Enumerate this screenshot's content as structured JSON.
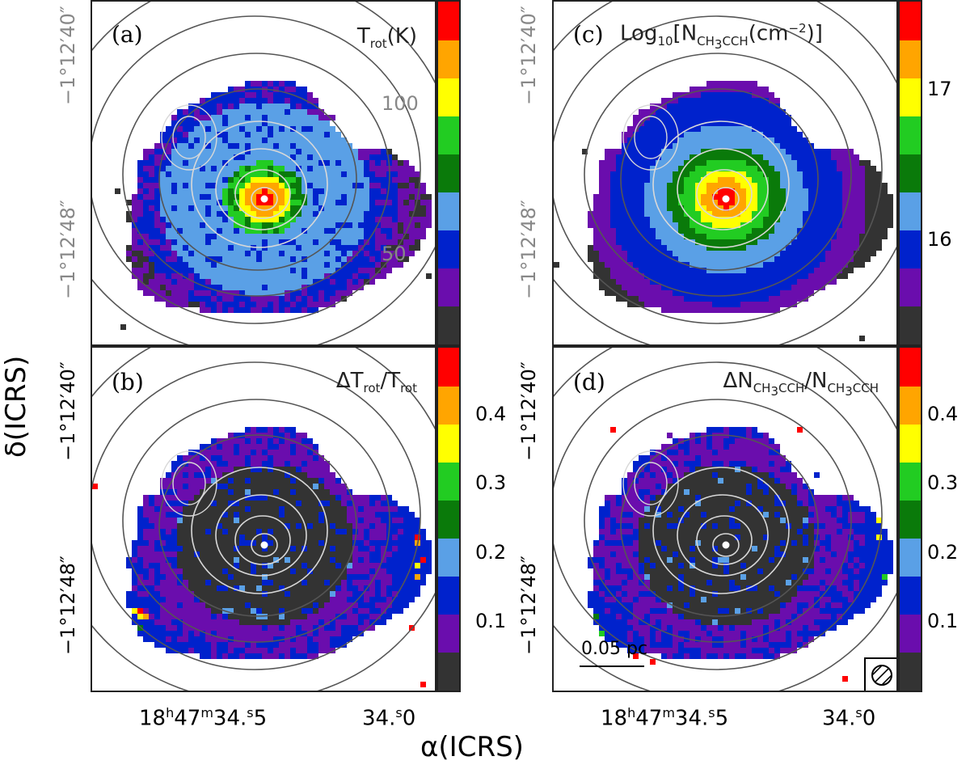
{
  "figure": {
    "x_axis_title": "α(ICRS)",
    "y_axis_title": "δ(ICRS)",
    "ra_ticks": [
      {
        "h": "18",
        "m": "47",
        "s": "34",
        "frac": "5",
        "label": "18h47m34.5s"
      },
      {
        "h": "",
        "m": "",
        "s": "34",
        "frac": "0",
        "label": "34.0s"
      }
    ],
    "dec_ticks": [
      "−1°12′40″",
      "−1°12′48″"
    ],
    "scalebar_label": "0.05 pc",
    "beam_icon": "hatched-circle-beam"
  },
  "colors": {
    "levels": [
      "#333333",
      "#6a0dad",
      "#0022cc",
      "#5aa0e6",
      "#0a7a0a",
      "#22cc22",
      "#ffff00",
      "#ffa500",
      "#ff0000"
    ],
    "contour": "#555555",
    "contour_light": "#d8d8d8"
  },
  "chart_data": [
    {
      "id": "a",
      "type": "heatmap",
      "label": "(a)",
      "quantity_html": "T<sub>rot</sub>(K)",
      "quantity_text": "Trot(K)",
      "colorbar_ticks": [
        {
          "value": 100,
          "label": "100"
        },
        {
          "value": 50,
          "label": "50"
        }
      ],
      "colorbar_range": [
        20,
        135
      ],
      "tick_color": "#888888",
      "map_model": "temperature",
      "peak_level": 8
    },
    {
      "id": "c",
      "type": "heatmap",
      "label": "(c)",
      "quantity_html": "Log<sub>10</sub>[N<sub>CH<sub>3</sub>CCH</sub>(cm<sup>−2</sup>)]",
      "quantity_text": "Log10[NCH3CCH(cm−2)]",
      "colorbar_ticks": [
        {
          "value": 17,
          "label": "17"
        },
        {
          "value": 16,
          "label": "16"
        }
      ],
      "colorbar_range": [
        15.3,
        17.6
      ],
      "tick_color": "#000000",
      "map_model": "column",
      "peak_level": 8
    },
    {
      "id": "b",
      "type": "heatmap",
      "label": "(b)",
      "quantity_html": "ΔT<sub>rot</sub>/T<sub>rot</sub>",
      "quantity_text": "ΔTrot/Trot",
      "colorbar_ticks": [
        {
          "value": 0.4,
          "label": "0.4"
        },
        {
          "value": 0.3,
          "label": "0.3"
        },
        {
          "value": 0.2,
          "label": "0.2"
        },
        {
          "value": 0.1,
          "label": "0.1"
        }
      ],
      "colorbar_range": [
        0.0,
        0.5
      ],
      "tick_color": "#000000",
      "map_model": "uncertainty",
      "peak_level": 0
    },
    {
      "id": "d",
      "type": "heatmap",
      "label": "(d)",
      "quantity_html": "ΔN<sub>CH<sub>3</sub>CCH</sub>/N<sub>CH<sub>3</sub>CCH</sub>",
      "quantity_text": "ΔNCH3CCH/NCH3CCH",
      "colorbar_ticks": [
        {
          "value": 0.4,
          "label": "0.4"
        },
        {
          "value": 0.3,
          "label": "0.3"
        },
        {
          "value": 0.2,
          "label": "0.2"
        },
        {
          "value": 0.1,
          "label": "0.1"
        }
      ],
      "colorbar_range": [
        0.0,
        0.5
      ],
      "tick_color": "#000000",
      "map_model": "uncertainty",
      "peak_level": 0
    }
  ]
}
